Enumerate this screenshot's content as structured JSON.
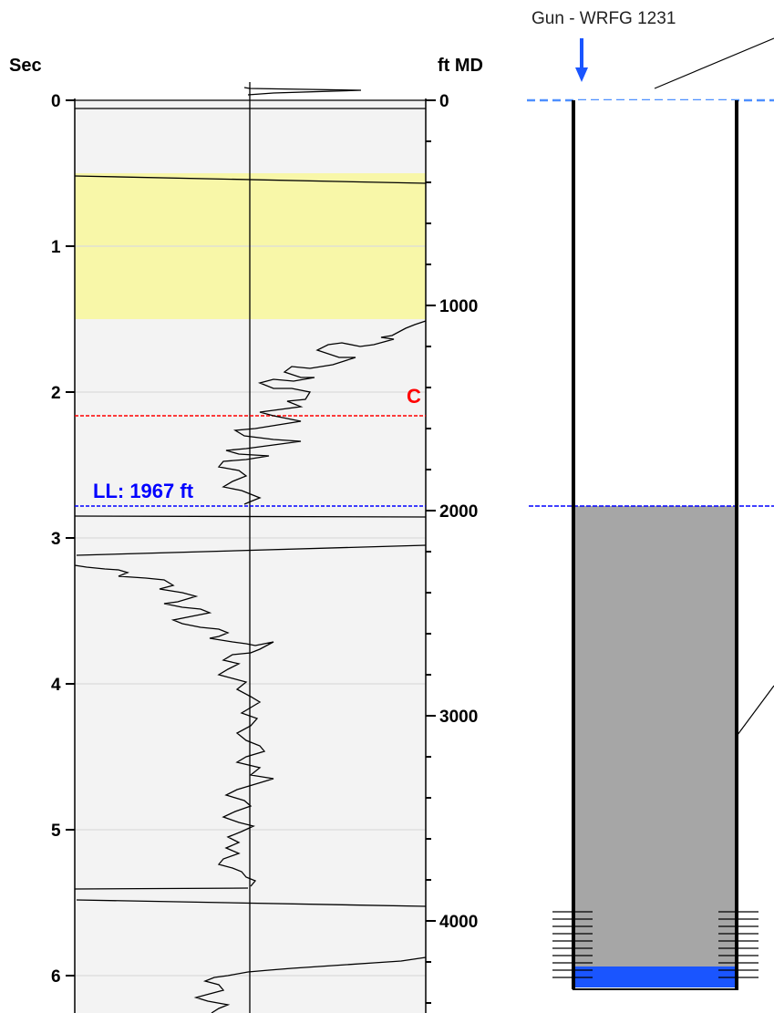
{
  "left_axis": {
    "title": "Sec",
    "ticks": [
      "0",
      "1",
      "2",
      "3",
      "4",
      "5",
      "6"
    ]
  },
  "right_axis": {
    "title": "ft MD",
    "ticks": [
      "0",
      "1000",
      "2000",
      "3000",
      "4000"
    ]
  },
  "gun": {
    "label": "Gun - WRFG 1231"
  },
  "liquid_level": {
    "label": "LL: 1967 ft",
    "depth_ft": 1967,
    "color": "#0000ff"
  },
  "marker": {
    "label": "C",
    "color": "#ff0000"
  },
  "colors": {
    "panel_bg": "#f3f3f3",
    "highlight": "#f8f7a8",
    "fluid": "#a6a6a6",
    "bottom_fluid": "#1a55ff",
    "surface_line": "#4d8fff",
    "arrow": "#1a55ff"
  },
  "chart_data": {
    "type": "line",
    "title": "",
    "xlabel": "",
    "ylabel": "Sec",
    "ylabel_right": "ft MD",
    "ylim_sec": [
      0,
      6.2
    ],
    "ylim_ft": [
      0,
      4300
    ],
    "highlight_band_sec": [
      0.5,
      1.5
    ],
    "liquid_level_sec": 2.8,
    "marker_C_sec": 2.17,
    "grid": true
  }
}
